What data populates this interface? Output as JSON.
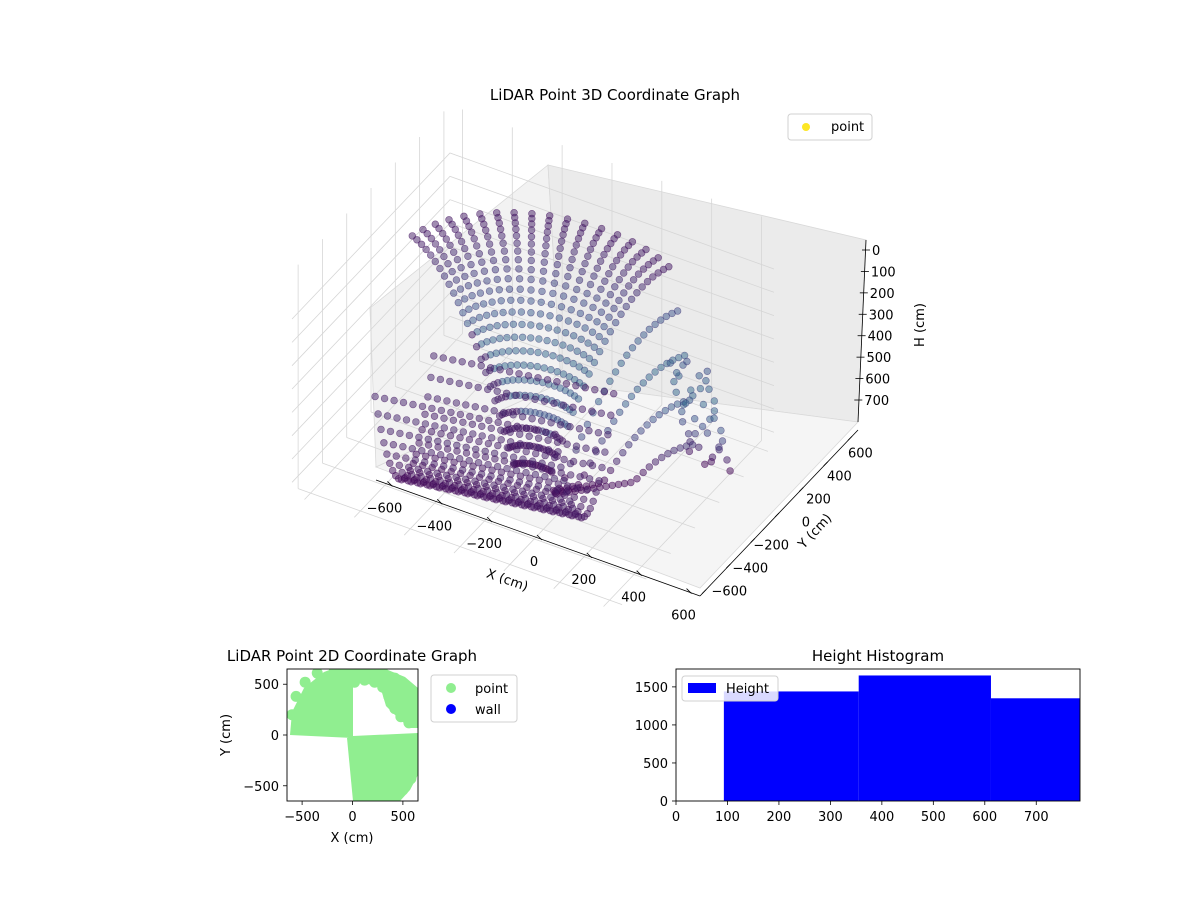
{
  "chart_data": [
    {
      "type": "scatter",
      "projection": "3d",
      "title": "LiDAR Point 3D Coordinate Graph",
      "xlabel": "X (cm)",
      "ylabel": "Y (cm)",
      "zlabel": "H (cm)",
      "xticks": [
        "−600",
        "−400",
        "−200",
        "0",
        "200",
        "400",
        "600"
      ],
      "yticks": [
        "−600",
        "−400",
        "−200",
        "0",
        "200",
        "400",
        "600"
      ],
      "zticks": [
        "0",
        "100",
        "200",
        "300",
        "400",
        "500",
        "600",
        "700"
      ],
      "xlim": [
        -650,
        650
      ],
      "ylim": [
        -650,
        650
      ],
      "zlim": [
        780,
        0
      ],
      "z_axis_inverted": true,
      "grid": true,
      "colormap": "viridis",
      "legend": {
        "placement": "top-right",
        "entries": [
          {
            "name": "point",
            "color": "#fde725"
          }
        ]
      },
      "series": [
        {
          "name": "point",
          "description_points": [
            {
              "x": -400,
              "y": 350,
              "z": 120
            },
            {
              "x": -200,
              "y": 450,
              "z": 40
            },
            {
              "x": 0,
              "y": 500,
              "z": 30
            },
            {
              "x": 200,
              "y": 480,
              "z": 50
            },
            {
              "x": 400,
              "y": 420,
              "z": 200
            },
            {
              "x": 560,
              "y": 300,
              "z": 420
            },
            {
              "x": 600,
              "y": 250,
              "z": 560
            },
            {
              "x": 0,
              "y": 0,
              "z": 740
            },
            {
              "x": -100,
              "y": -300,
              "z": 760
            },
            {
              "x": 100,
              "y": -350,
              "z": 700
            },
            {
              "x": 300,
              "y": -400,
              "z": 480
            },
            {
              "x": 450,
              "y": -450,
              "z": 300
            }
          ]
        }
      ]
    },
    {
      "type": "scatter",
      "title": "LiDAR Point 2D Coordinate Graph",
      "xlabel": "X (cm)",
      "ylabel": "Y (cm)",
      "xticks": [
        "−500",
        "0",
        "500"
      ],
      "yticks": [
        "−500",
        "0",
        "500"
      ],
      "xlim": [
        -650,
        650
      ],
      "ylim": [
        -650,
        650
      ],
      "grid": false,
      "legend": {
        "placement": "outside-right",
        "entries": [
          {
            "name": "point",
            "color": "#90ee90"
          },
          {
            "name": "wall",
            "color": "#0000ff"
          }
        ]
      },
      "series": [
        {
          "name": "point",
          "color": "#90ee90",
          "regions": [
            {
              "quadrant": "upper-left",
              "x_range": [
                -650,
                0
              ],
              "y_range": [
                0,
                650
              ]
            },
            {
              "quadrant": "lower-right",
              "x_range": [
                0,
                650
              ],
              "y_range": [
                -650,
                0
              ]
            }
          ]
        },
        {
          "name": "wall",
          "color": "#0000ff",
          "values": []
        }
      ]
    },
    {
      "type": "bar",
      "subtype": "histogram",
      "title": "Height Histogram",
      "xlabel": "",
      "ylabel": "",
      "xticks": [
        "0",
        "100",
        "200",
        "300",
        "400",
        "500",
        "600",
        "700"
      ],
      "yticks": [
        "0",
        "500",
        "1000",
        "1500"
      ],
      "xlim": [
        0,
        785
      ],
      "ylim": [
        0,
        1735
      ],
      "legend": {
        "placement": "top-left",
        "entries": [
          {
            "name": "Height",
            "color": "#0000ff"
          }
        ]
      },
      "series": [
        {
          "name": "Height",
          "color": "#0000ff",
          "bins": [
            {
              "x0": 93,
              "x1": 355,
              "value": 1440
            },
            {
              "x0": 355,
              "x1": 612,
              "value": 1650
            },
            {
              "x0": 612,
              "x1": 785,
              "value": 1350
            }
          ]
        }
      ]
    }
  ]
}
